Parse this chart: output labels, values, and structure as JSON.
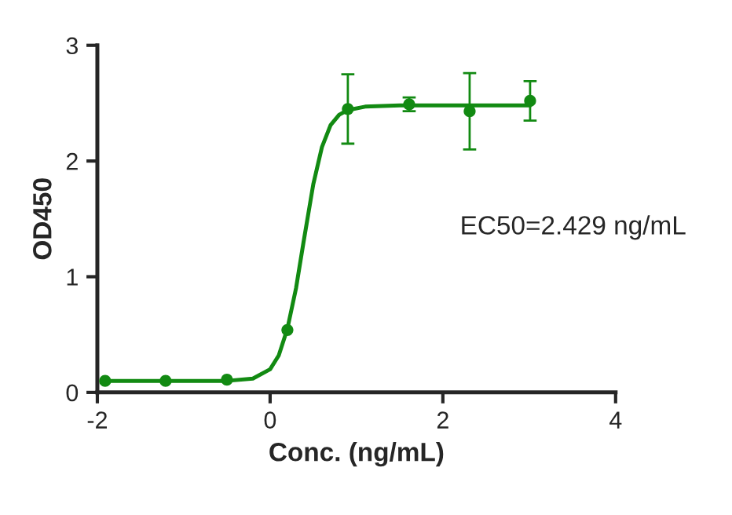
{
  "chart_data": {
    "type": "scatter",
    "xlabel": "Conc. (ng/mL)",
    "ylabel": "OD450",
    "annotations": [
      "EC50=2.429 ng/mL"
    ],
    "xlim": [
      -2,
      4
    ],
    "xticks": [
      -2,
      0,
      2,
      4
    ],
    "ylim": [
      0,
      3
    ],
    "yticks": [
      0,
      1,
      2,
      3
    ],
    "grid": false,
    "legend": false,
    "series": [
      {
        "marker": "circle",
        "color": "#128a12",
        "x": [
          -1.91,
          -1.21,
          -0.5,
          0.2,
          0.9,
          1.61,
          2.31,
          3.01
        ],
        "values": [
          0.1,
          0.1,
          0.11,
          0.54,
          2.45,
          2.49,
          2.43,
          2.52
        ],
        "errors": [
          null,
          null,
          null,
          null,
          [
            2.15,
            2.75
          ],
          [
            2.43,
            2.55
          ],
          [
            2.1,
            2.76
          ],
          [
            2.35,
            2.69
          ]
        ]
      },
      {
        "type": "line",
        "color": "#128a12",
        "x": [
          -1.91,
          -1.0,
          -0.5,
          -0.2,
          0.0,
          0.1,
          0.2,
          0.3,
          0.385,
          0.5,
          0.6,
          0.7,
          0.8,
          0.9,
          1.1,
          1.5,
          3.01
        ],
        "values": [
          0.1,
          0.1,
          0.1,
          0.12,
          0.2,
          0.32,
          0.55,
          0.9,
          1.29,
          1.8,
          2.12,
          2.31,
          2.4,
          2.44,
          2.47,
          2.48,
          2.48
        ]
      }
    ]
  }
}
